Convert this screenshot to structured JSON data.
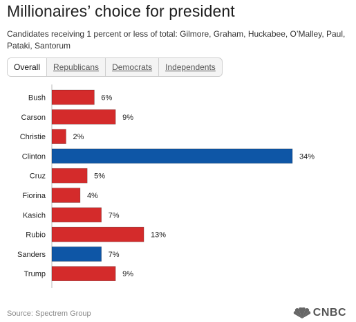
{
  "header": {
    "title": "Millionaires’ choice for president",
    "subtitle": "Candidates receiving 1 percent or less of total: Gilmore, Graham, Huckabee, O’Malley, Paul, Pataki, Santorum"
  },
  "tabs": [
    {
      "label": "Overall",
      "active": true
    },
    {
      "label": "Republicans",
      "active": false
    },
    {
      "label": "Democrats",
      "active": false
    },
    {
      "label": "Independents",
      "active": false
    }
  ],
  "colors": {
    "republican": "#d42b2b",
    "democrat": "#0e56a6"
  },
  "chart_data": {
    "type": "bar",
    "orientation": "horizontal",
    "categories": [
      "Bush",
      "Carson",
      "Christie",
      "Clinton",
      "Cruz",
      "Fiorina",
      "Kasich",
      "Rubio",
      "Sanders",
      "Trump"
    ],
    "values": [
      6,
      9,
      2,
      34,
      5,
      4,
      7,
      13,
      7,
      9
    ],
    "value_labels": [
      "6%",
      "9%",
      "2%",
      "34%",
      "5%",
      "4%",
      "7%",
      "13%",
      "7%",
      "9%"
    ],
    "party": [
      "republican",
      "republican",
      "republican",
      "democrat",
      "republican",
      "republican",
      "republican",
      "republican",
      "democrat",
      "republican"
    ],
    "xlim": [
      0,
      34
    ],
    "grid": false,
    "legend": "none"
  },
  "footer": {
    "source": "Source: Spectrem Group",
    "logo_text": "CNBC"
  }
}
